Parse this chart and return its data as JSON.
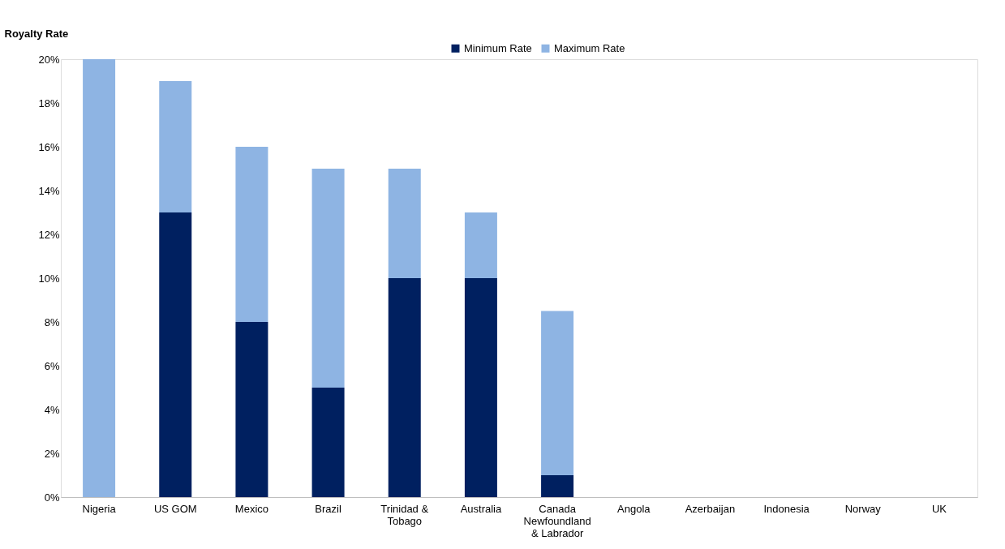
{
  "chart_data": {
    "type": "bar",
    "stacked": true,
    "ylabel": "Royalty Rate",
    "categories": [
      "Nigeria",
      "US GOM",
      "Mexico",
      "Brazil",
      "Trinidad &\nTobago",
      "Australia",
      "Canada\nNewfoundland\n& Labrador",
      "Angola",
      "Azerbaijan",
      "Indonesia",
      "Norway",
      "UK"
    ],
    "series": [
      {
        "name": "Minimum Rate",
        "color": "#002060",
        "values": [
          0,
          13,
          8,
          5,
          10,
          10,
          1,
          0,
          0,
          0,
          0,
          0
        ]
      },
      {
        "name": "Maximum Rate",
        "color": "#8eb4e3",
        "values": [
          20,
          6,
          8,
          10,
          5,
          3,
          7.5,
          0,
          0,
          0,
          0,
          0
        ]
      }
    ],
    "ylim": [
      0,
      20
    ],
    "yticks": [
      {
        "value": 0,
        "label": "0%"
      },
      {
        "value": 2,
        "label": "2%"
      },
      {
        "value": 4,
        "label": "4%"
      },
      {
        "value": 6,
        "label": "6%"
      },
      {
        "value": 8,
        "label": "8%"
      },
      {
        "value": 10,
        "label": "10%"
      },
      {
        "value": 12,
        "label": "12%"
      },
      {
        "value": 14,
        "label": "14%"
      },
      {
        "value": 16,
        "label": "16%"
      },
      {
        "value": 18,
        "label": "18%"
      },
      {
        "value": 20,
        "label": "20%"
      }
    ],
    "grid": false,
    "legend": "top"
  }
}
